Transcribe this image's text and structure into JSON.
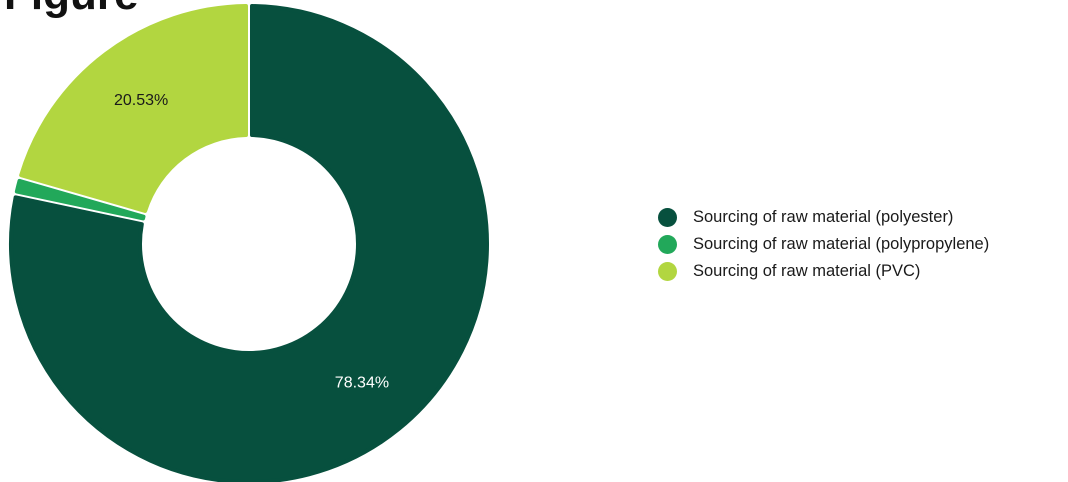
{
  "chart_data": {
    "type": "pie",
    "title": "Figure",
    "donut": true,
    "legend_position": "right",
    "series": [
      {
        "name": "Sourcing of raw material (polyester)",
        "value": 78.34,
        "label": "78.34%",
        "color": "#07503e",
        "label_color": "#ffffff"
      },
      {
        "name": "Sourcing of raw material (polypropylene)",
        "value": 1.13,
        "label": "",
        "color": "#22a85a",
        "label_color": "#ffffff"
      },
      {
        "name": "Sourcing of raw material (PVC)",
        "value": 20.53,
        "label": "20.53%",
        "color": "#b2d640",
        "label_color": "#1a1a1a"
      }
    ]
  }
}
